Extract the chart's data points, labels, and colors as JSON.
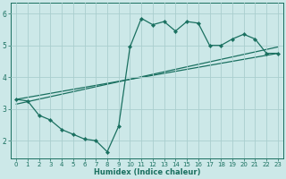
{
  "title": "",
  "xlabel": "Humidex (Indice chaleur)",
  "ylabel": "",
  "bg_color": "#cce8e8",
  "grid_color": "#aacece",
  "line_color": "#1a7060",
  "xlim": [
    -0.5,
    23.5
  ],
  "ylim": [
    1.45,
    6.35
  ],
  "xticks": [
    0,
    1,
    2,
    3,
    4,
    5,
    6,
    7,
    8,
    9,
    10,
    11,
    12,
    13,
    14,
    15,
    16,
    17,
    18,
    19,
    20,
    21,
    22,
    23
  ],
  "yticks": [
    2,
    3,
    4,
    5,
    6
  ],
  "line1_x": [
    0,
    1,
    2,
    3,
    4,
    5,
    6,
    7,
    8,
    9,
    10,
    11,
    12,
    13,
    14,
    15,
    16,
    17,
    18,
    19,
    20,
    21,
    22,
    23
  ],
  "line1_y": [
    3.3,
    3.25,
    2.8,
    2.65,
    2.35,
    2.2,
    2.05,
    2.0,
    1.65,
    2.45,
    4.95,
    5.85,
    5.65,
    5.75,
    5.45,
    5.75,
    5.7,
    5.0,
    5.0,
    5.2,
    5.35,
    5.2,
    4.75,
    4.75
  ],
  "line2_x": [
    0,
    23
  ],
  "line2_y": [
    3.3,
    4.75
  ],
  "line3_x": [
    0,
    23
  ],
  "line3_y": [
    3.15,
    4.95
  ],
  "marker_size": 2.2,
  "linewidth": 0.9,
  "tick_fontsize": 5.0,
  "xlabel_fontsize": 6.0
}
